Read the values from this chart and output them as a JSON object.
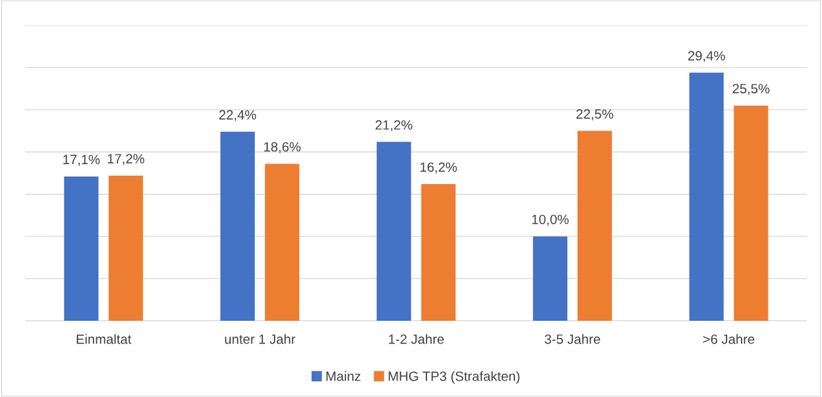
{
  "chart_data": {
    "type": "bar",
    "categories": [
      "Einmaltat",
      "unter 1 Jahr",
      "1-2 Jahre",
      "3-5 Jahre",
      ">6 Jahre"
    ],
    "series": [
      {
        "name": "Mainz",
        "color": "#4472c4",
        "values": [
          17.1,
          22.4,
          21.2,
          10.0,
          29.4
        ],
        "value_labels": [
          "17,1%",
          "22,4%",
          "21,2%",
          "10,0%",
          "29,4%"
        ]
      },
      {
        "name": "MHG TP3 (Strafakten)",
        "color": "#ed7d31",
        "values": [
          17.2,
          18.6,
          16.2,
          22.5,
          25.5
        ],
        "value_labels": [
          "17,2%",
          "18,6%",
          "16,2%",
          "22,5%",
          "25,5%"
        ]
      }
    ],
    "ylim": [
      0,
      35
    ],
    "yticks": [
      {
        "value": 0,
        "label": null
      },
      {
        "value": 5,
        "label": null
      },
      {
        "value": 10,
        "label": null
      },
      {
        "value": 15,
        "label": null
      },
      {
        "value": 20,
        "label": null
      },
      {
        "value": 25,
        "label": null
      },
      {
        "value": 30,
        "label": null
      },
      {
        "value": 35,
        "label": null
      }
    ],
    "tick_labels": "x",
    "grid": "y",
    "legend": "bottom"
  }
}
